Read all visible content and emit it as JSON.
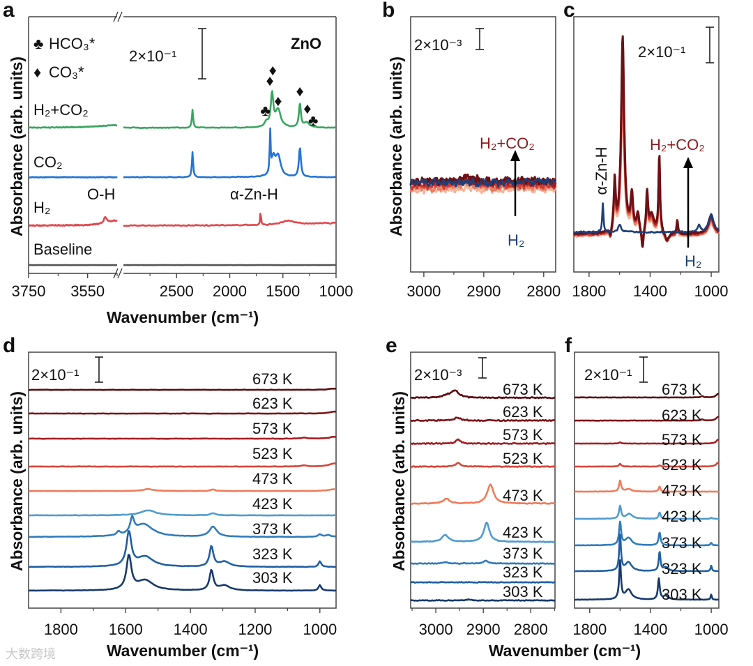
{
  "watermark": "大数跨境",
  "colors": {
    "green": "#3aa660",
    "blue": "#2374d6",
    "red": "#e0474c",
    "gray": "#555555",
    "darkred": "#8b1a1e",
    "navy": "#1d3f78"
  },
  "chart_data": [
    {
      "panel": "a",
      "type": "line",
      "title": "ZnO",
      "ylabel": "Absorbance (arb. units)",
      "xlabel": "Wavenumber (cm⁻¹)",
      "xlim_segments": [
        [
          3750,
          3450
        ],
        [
          3000,
          1000
        ]
      ],
      "xticks": [
        "3750",
        "3550",
        "2500",
        "2000",
        "1500",
        "1000"
      ],
      "minor_xticks": [
        3650,
        3450,
        2750,
        2250,
        1750,
        1250
      ],
      "ylim": [
        0,
        1.02
      ],
      "scale_bar": {
        "label": "2×10⁻¹",
        "value": 0.2
      },
      "legend": [
        {
          "symbol": "♣",
          "label": "HCO₃*"
        },
        {
          "symbol": "♦",
          "label": "CO₃*"
        }
      ],
      "annotations": [
        "O-H",
        "α-Zn-H"
      ],
      "markers": [
        {
          "symbol": "♦",
          "x": 1595
        },
        {
          "symbol": "♦",
          "x": 1622
        },
        {
          "symbol": "♦",
          "x": 1545
        },
        {
          "symbol": "♣",
          "x": 1665
        },
        {
          "symbol": "♦",
          "x": 1340
        },
        {
          "symbol": "♦",
          "x": 1270
        },
        {
          "symbol": "♣",
          "x": 1215
        }
      ],
      "series": [
        {
          "label": "H₂+CO₂",
          "color": "#3aa660",
          "offset": 0.58,
          "noise": 0.002,
          "peaks": [
            [
              2350,
              0.072,
              7
            ],
            [
              1602,
              0.13,
              14
            ],
            [
              1545,
              0.07,
              30
            ],
            [
              1655,
              0.02,
              20
            ],
            [
              1340,
              0.095,
              11
            ],
            [
              1275,
              0.02,
              30
            ],
            [
              3450,
              0.01,
              80
            ]
          ]
        },
        {
          "label": "CO₂",
          "color": "#2374d6",
          "offset": 0.383,
          "noise": 0.002,
          "peaks": [
            [
              2350,
              0.1,
              7
            ],
            [
              1620,
              0.17,
              5
            ],
            [
              1590,
              0.07,
              22
            ],
            [
              1545,
              0.08,
              28
            ],
            [
              1340,
              0.12,
              11
            ]
          ]
        },
        {
          "label": "H₂",
          "color": "#e0474c",
          "offset": 0.19,
          "noise": 0.003,
          "peaks": [
            [
              3490,
              0.025,
              6
            ],
            [
              3450,
              0.02,
              40
            ],
            [
              1710,
              0.06,
              4
            ],
            [
              1450,
              0.015,
              70
            ],
            [
              1000,
              0.01,
              500
            ]
          ]
        },
        {
          "label": "Baseline",
          "color": "#555555",
          "offset": 0.033,
          "noise": 0.0005,
          "peaks": []
        }
      ]
    },
    {
      "panel": "b",
      "type": "line",
      "ylabel": "Absorbance (arb. units)",
      "xlim": [
        3022,
        2780
      ],
      "xticks": [
        "3000",
        "2900",
        "2800"
      ],
      "minor_xticks": [
        2950,
        2850
      ],
      "ylim": [
        0,
        0.0244
      ],
      "scale_bar": {
        "label": "2×10⁻³",
        "value": 0.002
      },
      "gradient_series": {
        "label": "H₂+CO₂",
        "label_color": "#8b1a1e",
        "offset": 0.0083,
        "noise": 0.0005,
        "colors": [
          "#f6b59a",
          "#ea7d62",
          "#cc3b34",
          "#a01e22",
          "#6e1014"
        ],
        "scales": [
          0.7,
          0.8,
          0.9,
          0.95,
          1.0
        ],
        "peaks": [
          [
            2930,
            0.0004,
            12
          ]
        ]
      },
      "reference_series": {
        "label": "H₂",
        "color": "#1d3f78",
        "offset": 0.0086,
        "noise": 0.0005,
        "peaks": []
      }
    },
    {
      "panel": "c",
      "type": "line",
      "xlim": [
        1900,
        950
      ],
      "xticks": [
        "1800",
        "1400",
        "1000"
      ],
      "minor_xticks": [
        1600,
        1200
      ],
      "ylim": [
        0,
        1.435
      ],
      "scale_bar": {
        "label": "2×10⁻¹",
        "value": 0.2
      },
      "annotations": [
        "α-Zn-H"
      ],
      "gradient_series": {
        "label": "H₂+CO₂",
        "label_color": "#8b1a1e",
        "offset": 0.208,
        "noise": 0.008,
        "colors": [
          "#f6b59a",
          "#ea7d62",
          "#cc3b34",
          "#a01e22",
          "#6e1014"
        ],
        "scales": [
          0.72,
          0.8,
          0.88,
          0.95,
          1.0
        ],
        "peaks": [
          [
            1580,
            1.1,
            12
          ],
          [
            1632,
            0.28,
            7
          ],
          [
            1520,
            0.2,
            10
          ],
          [
            1480,
            0.1,
            10
          ],
          [
            1420,
            0.22,
            7
          ],
          [
            1390,
            0.1,
            18
          ],
          [
            1340,
            0.44,
            6
          ],
          [
            1450,
            -0.12,
            7
          ],
          [
            1660,
            -0.05,
            6
          ],
          [
            1222,
            0.08,
            5
          ],
          [
            1290,
            -0.05,
            14
          ],
          [
            1000,
            0.1,
            22
          ]
        ]
      },
      "reference_series": {
        "label": "H₂",
        "color": "#1d3f78",
        "offset": 0.224,
        "noise": 0.006,
        "peaks": [
          [
            1710,
            0.16,
            5
          ],
          [
            1600,
            0.04,
            12
          ],
          [
            1080,
            0.04,
            10
          ],
          [
            1000,
            0.1,
            18
          ]
        ]
      }
    },
    {
      "panel": "d",
      "type": "line",
      "ylabel": "Absorbance (arb. units)",
      "xlabel": "Wavenumber (cm⁻¹)",
      "xlim": [
        1900,
        950
      ],
      "xticks": [
        "1800",
        "1600",
        "1400",
        "1200",
        "1000"
      ],
      "minor_xticks": [
        1700,
        1500,
        1300,
        1100
      ],
      "ylim": [
        0,
        2.04
      ],
      "scale_bar": {
        "label": "2×10⁻¹",
        "value": 0.2
      },
      "series": [
        {
          "label": "673 K",
          "color": "#5a0c10",
          "offset": 1.739,
          "noise": 0.002,
          "peaks": [
            [
              955,
              0.01,
              20
            ]
          ]
        },
        {
          "label": "623 K",
          "color": "#7d1418",
          "offset": 1.55,
          "noise": 0.002,
          "peaks": [
            [
              955,
              0.015,
              20
            ]
          ]
        },
        {
          "label": "573 K",
          "color": "#a51f24",
          "offset": 1.35,
          "noise": 0.002,
          "peaks": [
            [
              955,
              0.015,
              20
            ],
            [
              1050,
              0.008,
              10
            ]
          ]
        },
        {
          "label": "523 K",
          "color": "#d5463a",
          "offset": 1.128,
          "noise": 0.002,
          "peaks": [
            [
              955,
              0.025,
              20
            ],
            [
              1050,
              0.008,
              10
            ]
          ]
        },
        {
          "label": "473 K",
          "color": "#ef7b5a",
          "offset": 0.933,
          "noise": 0.002,
          "peaks": [
            [
              1530,
              0.015,
              20
            ],
            [
              1330,
              0.012,
              8
            ],
            [
              955,
              0.015,
              20
            ]
          ]
        },
        {
          "label": "423 K",
          "color": "#4f9bd0",
          "offset": 0.739,
          "noise": 0.002,
          "peaks": [
            [
              1530,
              0.04,
              28
            ],
            [
              1330,
              0.017,
              10
            ]
          ]
        },
        {
          "label": "373 K",
          "color": "#2f7bbd",
          "offset": 0.567,
          "noise": 0.002,
          "peaks": [
            [
              1580,
              0.12,
              7
            ],
            [
              1545,
              0.1,
              35
            ],
            [
              1622,
              0.03,
              6
            ],
            [
              1330,
              0.08,
              14
            ],
            [
              1000,
              0.02,
              6
            ],
            [
              975,
              0.015,
              10
            ]
          ]
        },
        {
          "label": "323 K",
          "color": "#1f5fa3",
          "offset": 0.328,
          "noise": 0.002,
          "peaks": [
            [
              1590,
              0.27,
              9
            ],
            [
              1540,
              0.08,
              30
            ],
            [
              1335,
              0.16,
              7
            ],
            [
              1295,
              0.04,
              20
            ],
            [
              1000,
              0.045,
              5
            ]
          ]
        },
        {
          "label": "303 K",
          "color": "#17396f",
          "offset": 0.139,
          "noise": 0.002,
          "peaks": [
            [
              1590,
              0.27,
              9
            ],
            [
              1540,
              0.08,
              30
            ],
            [
              1335,
              0.16,
              7
            ],
            [
              1295,
              0.04,
              20
            ],
            [
              1000,
              0.045,
              5
            ]
          ]
        }
      ]
    },
    {
      "panel": "e",
      "type": "line",
      "ylabel": "Absorbance (arb. units)",
      "xlim": [
        3053,
        2749
      ],
      "xticks": [
        "3000",
        "2900",
        "2800"
      ],
      "minor_xticks": [
        3050,
        2950,
        2850,
        2750
      ],
      "ylim": [
        0,
        0.0253
      ],
      "scale_bar": {
        "label": "2×10⁻³",
        "value": 0.002
      },
      "series": [
        {
          "label": "673 K",
          "color": "#5a0c10",
          "offset": 0.0208,
          "noise": 8e-05,
          "peaks": [
            [
              2960,
              0.00069,
              10
            ],
            [
              2978,
              0.0002,
              8
            ]
          ]
        },
        {
          "label": "623 K",
          "color": "#7d1418",
          "offset": 0.01855,
          "noise": 8e-05,
          "peaks": [
            [
              2955,
              0.00028,
              8
            ]
          ]
        },
        {
          "label": "573 K",
          "color": "#a51f24",
          "offset": 0.01628,
          "noise": 8e-05,
          "peaks": [
            [
              2953,
              0.0004,
              6
            ]
          ]
        },
        {
          "label": "523 K",
          "color": "#d5463a",
          "offset": 0.014,
          "noise": 6e-05,
          "peaks": [
            [
              2953,
              0.00035,
              6
            ]
          ]
        },
        {
          "label": "473 K",
          "color": "#ef7b5a",
          "offset": 0.01034,
          "noise": 6e-05,
          "peaks": [
            [
              2885,
              0.0019,
              8
            ],
            [
              2978,
              0.00048,
              8
            ]
          ]
        },
        {
          "label": "423 K",
          "color": "#4f9bd0",
          "offset": 0.00655,
          "noise": 6e-05,
          "peaks": [
            [
              2893,
              0.0019,
              7
            ],
            [
              2980,
              0.0007,
              8
            ]
          ]
        },
        {
          "label": "373 K",
          "color": "#2f7bbd",
          "offset": 0.00441,
          "noise": 5e-05,
          "peaks": [
            [
              2895,
              0.00028,
              6
            ],
            [
              2980,
              0.00014,
              6
            ]
          ]
        },
        {
          "label": "323 K",
          "color": "#1f5fa3",
          "offset": 0.00255,
          "noise": 5e-05,
          "peaks": []
        },
        {
          "label": "303 K",
          "color": "#17396f",
          "offset": 0.00076,
          "noise": 5e-05,
          "peaks": [
            [
              2930,
              0.0001,
              5
            ]
          ]
        }
      ]
    },
    {
      "panel": "f",
      "type": "line",
      "xlabel": "Wavenumber (cm⁻¹)",
      "xlim": [
        1900,
        950
      ],
      "xticks": [
        "1800",
        "1400",
        "1000"
      ],
      "minor_xticks": [
        1600,
        1200
      ],
      "ylim": [
        0,
        2.04
      ],
      "scale_bar": {
        "label": "2×10⁻¹",
        "value": 0.2
      },
      "series": [
        {
          "label": "673 K",
          "color": "#5a0c10",
          "offset": 1.678,
          "noise": 0.002,
          "peaks": [
            [
              955,
              0.03,
              15
            ],
            [
              1060,
              0.01,
              10
            ]
          ]
        },
        {
          "label": "623 K",
          "color": "#7d1418",
          "offset": 1.494,
          "noise": 0.002,
          "peaks": [
            [
              955,
              0.03,
              15
            ],
            [
              1060,
              0.01,
              10
            ]
          ]
        },
        {
          "label": "573 K",
          "color": "#a51f24",
          "offset": 1.311,
          "noise": 0.002,
          "peaks": [
            [
              1600,
              0.01,
              8
            ],
            [
              955,
              0.03,
              15
            ]
          ]
        },
        {
          "label": "523 K",
          "color": "#d5463a",
          "offset": 1.128,
          "noise": 0.002,
          "peaks": [
            [
              1600,
              0.022,
              8
            ],
            [
              1340,
              0.01,
              8
            ],
            [
              955,
              0.03,
              15
            ]
          ]
        },
        {
          "label": "473 K",
          "color": "#ef7b5a",
          "offset": 0.928,
          "noise": 0.002,
          "peaks": [
            [
              1600,
              0.085,
              8
            ],
            [
              1545,
              0.02,
              25
            ],
            [
              1340,
              0.04,
              7
            ]
          ]
        },
        {
          "label": "423 K",
          "color": "#4f9bd0",
          "offset": 0.711,
          "noise": 0.002,
          "peaks": [
            [
              1600,
              0.1,
              8
            ],
            [
              1540,
              0.04,
              25
            ],
            [
              1340,
              0.05,
              8
            ],
            [
              1000,
              0.01,
              6
            ]
          ]
        },
        {
          "label": "373 K",
          "color": "#2f7bbd",
          "offset": 0.5,
          "noise": 0.002,
          "peaks": [
            [
              1600,
              0.18,
              8
            ],
            [
              1545,
              0.06,
              25
            ],
            [
              1340,
              0.1,
              8
            ],
            [
              1000,
              0.02,
              6
            ]
          ]
        },
        {
          "label": "323 K",
          "color": "#1f5fa3",
          "offset": 0.294,
          "noise": 0.002,
          "peaks": [
            [
              1600,
              0.28,
              7
            ],
            [
              1545,
              0.07,
              25
            ],
            [
              1340,
              0.15,
              7
            ],
            [
              1300,
              0.03,
              20
            ],
            [
              1000,
              0.045,
              5
            ]
          ]
        },
        {
          "label": "303 K",
          "color": "#17396f",
          "offset": 0.067,
          "noise": 0.002,
          "peaks": [
            [
              1600,
              0.3,
              7
            ],
            [
              1545,
              0.08,
              25
            ],
            [
              1345,
              0.165,
              7
            ],
            [
              1300,
              0.03,
              20
            ],
            [
              1000,
              0.04,
              5
            ]
          ]
        }
      ]
    }
  ]
}
